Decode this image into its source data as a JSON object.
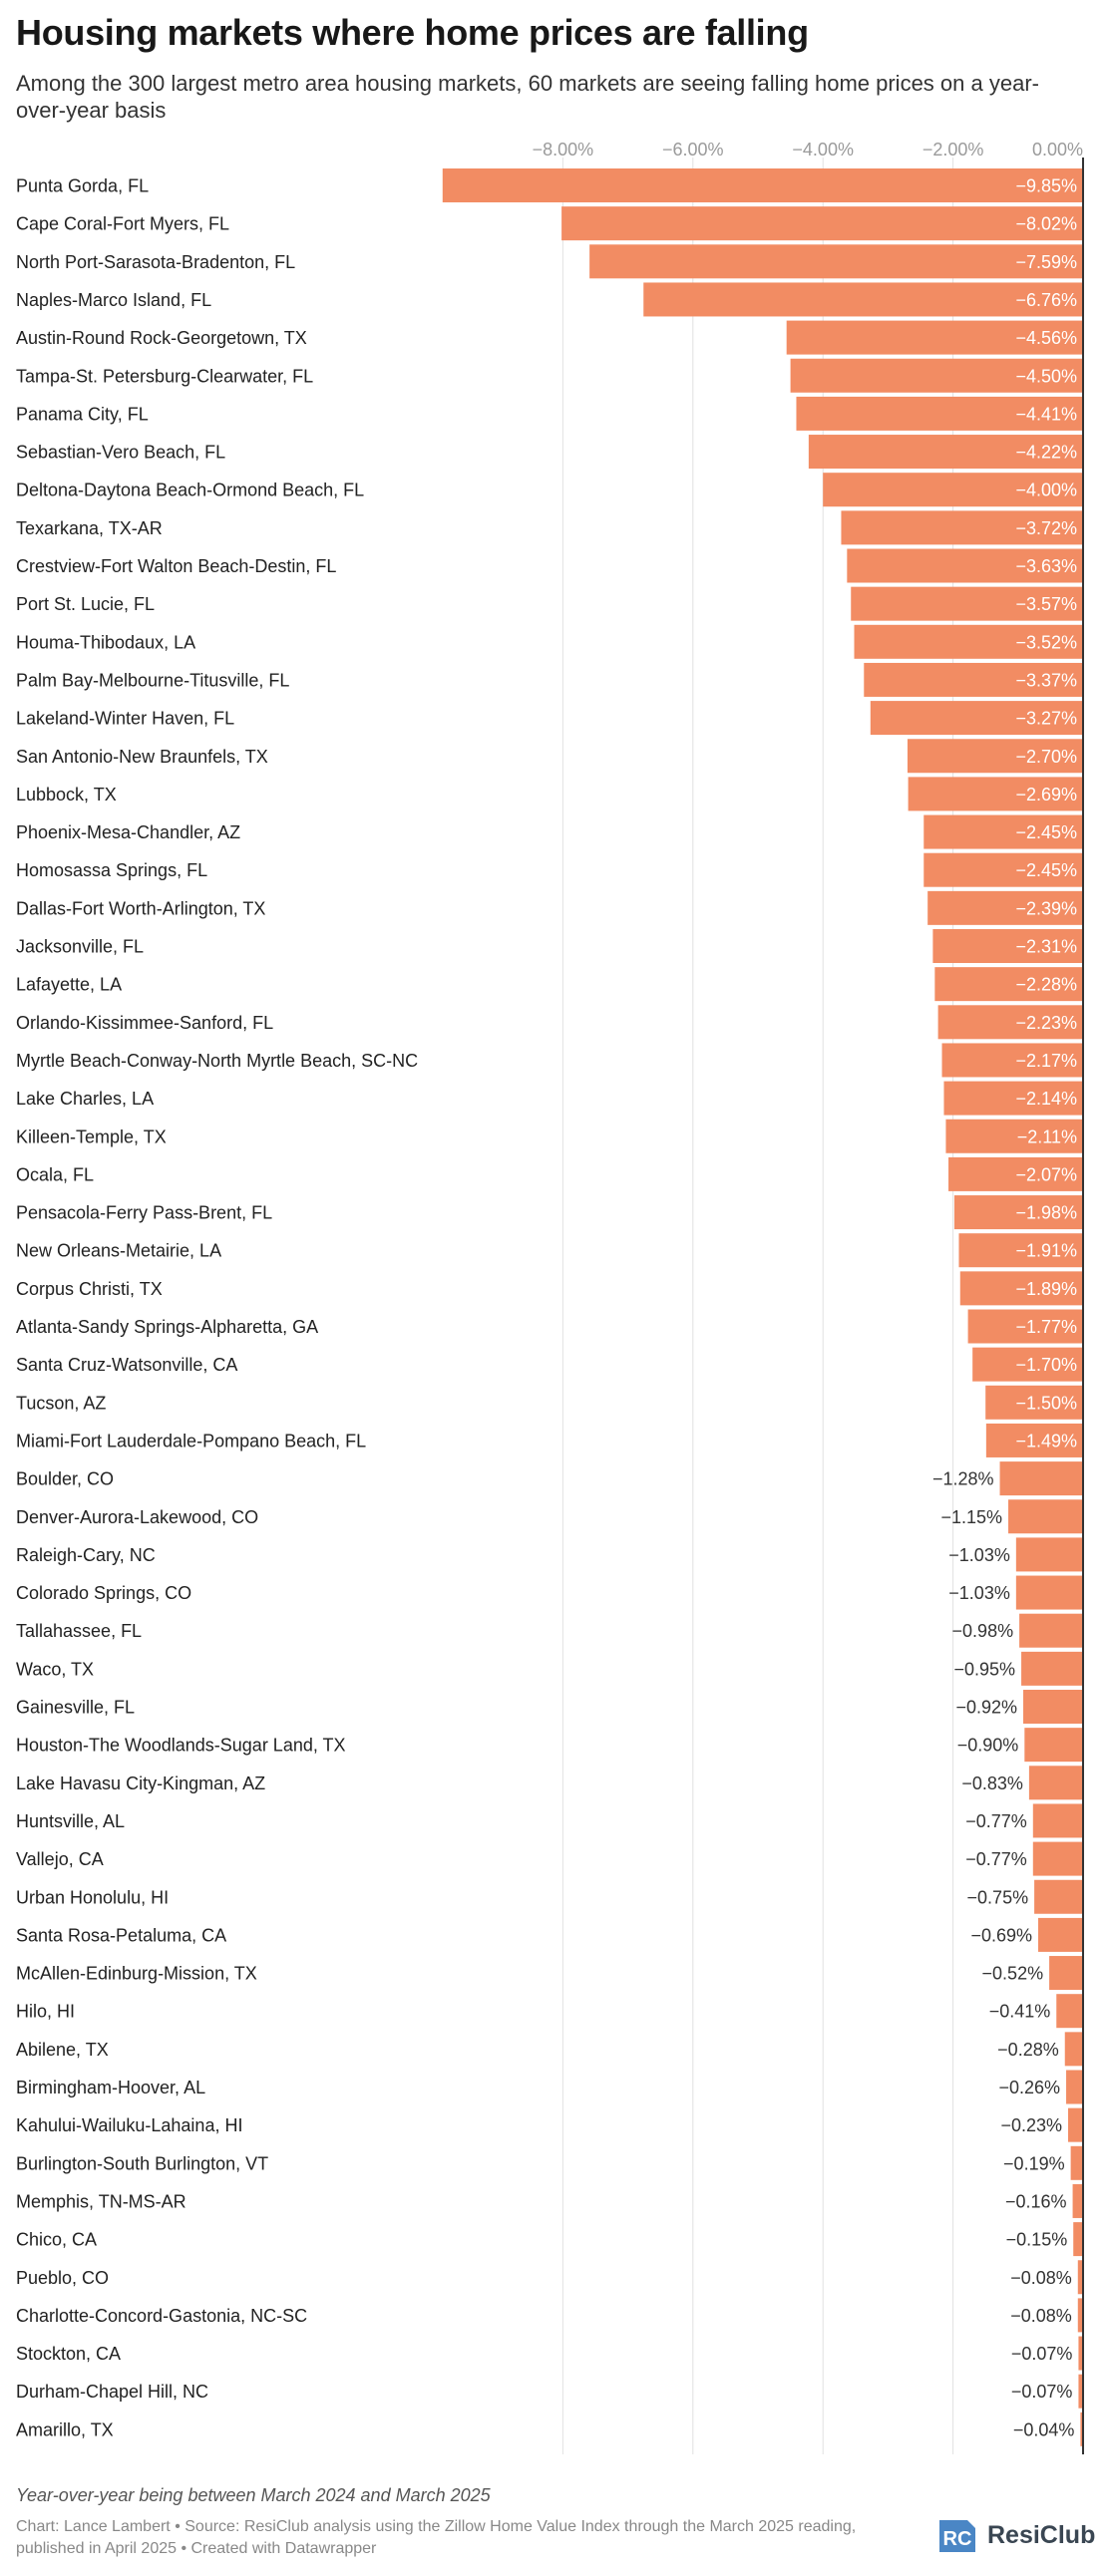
{
  "header": {
    "title": "Housing markets where home prices are falling",
    "subtitle": "Among the 300 largest metro area housing markets, 60 markets are seeing falling home prices on a year-over-year basis"
  },
  "chart_data": {
    "type": "bar",
    "orientation": "horizontal",
    "title": "Housing markets where home prices are falling",
    "xlabel": "",
    "ylabel": "",
    "xlim": [
      -10.2,
      0
    ],
    "x_ticks": [
      -8,
      -6,
      -4,
      -2,
      0
    ],
    "x_tick_labels": [
      "−8.00%",
      "−6.00%",
      "−4.00%",
      "−2.00%",
      "0.00%"
    ],
    "grid": true,
    "bar_color": "#f28c63",
    "zero_line_color": "#333333",
    "categories": [
      "Punta Gorda, FL",
      "Cape Coral-Fort Myers, FL",
      "North Port-Sarasota-Bradenton, FL",
      "Naples-Marco Island, FL",
      "Austin-Round Rock-Georgetown, TX",
      "Tampa-St. Petersburg-Clearwater, FL",
      "Panama City, FL",
      "Sebastian-Vero Beach, FL",
      "Deltona-Daytona Beach-Ormond Beach, FL",
      "Texarkana, TX-AR",
      "Crestview-Fort Walton Beach-Destin, FL",
      "Port St. Lucie, FL",
      "Houma-Thibodaux, LA",
      "Palm Bay-Melbourne-Titusville, FL",
      "Lakeland-Winter Haven, FL",
      "San Antonio-New Braunfels, TX",
      "Lubbock, TX",
      "Phoenix-Mesa-Chandler, AZ",
      "Homosassa Springs, FL",
      "Dallas-Fort Worth-Arlington, TX",
      "Jacksonville, FL",
      "Lafayette, LA",
      "Orlando-Kissimmee-Sanford, FL",
      "Myrtle Beach-Conway-North Myrtle Beach, SC-NC",
      "Lake Charles, LA",
      "Killeen-Temple, TX",
      "Ocala, FL",
      "Pensacola-Ferry Pass-Brent, FL",
      "New Orleans-Metairie, LA",
      "Corpus Christi, TX",
      "Atlanta-Sandy Springs-Alpharetta, GA",
      "Santa Cruz-Watsonville, CA",
      "Tucson, AZ",
      "Miami-Fort Lauderdale-Pompano Beach, FL",
      "Boulder, CO",
      "Denver-Aurora-Lakewood, CO",
      "Raleigh-Cary, NC",
      "Colorado Springs, CO",
      "Tallahassee, FL",
      "Waco, TX",
      "Gainesville, FL",
      "Houston-The Woodlands-Sugar Land, TX",
      "Lake Havasu City-Kingman, AZ",
      "Huntsville, AL",
      "Vallejo, CA",
      "Urban Honolulu, HI",
      "Santa Rosa-Petaluma, CA",
      "McAllen-Edinburg-Mission, TX",
      "Hilo, HI",
      "Abilene, TX",
      "Birmingham-Hoover, AL",
      "Kahului-Wailuku-Lahaina, HI",
      "Burlington-South Burlington, VT",
      "Memphis, TN-MS-AR",
      "Chico, CA",
      "Pueblo, CO",
      "Charlotte-Concord-Gastonia, NC-SC",
      "Stockton, CA",
      "Durham-Chapel Hill, NC",
      "Amarillo, TX"
    ],
    "values": [
      -9.85,
      -8.02,
      -7.59,
      -6.76,
      -4.56,
      -4.5,
      -4.41,
      -4.22,
      -4.0,
      -3.72,
      -3.63,
      -3.57,
      -3.52,
      -3.37,
      -3.27,
      -2.7,
      -2.69,
      -2.45,
      -2.45,
      -2.39,
      -2.31,
      -2.28,
      -2.23,
      -2.17,
      -2.14,
      -2.11,
      -2.07,
      -1.98,
      -1.91,
      -1.89,
      -1.77,
      -1.7,
      -1.5,
      -1.49,
      -1.28,
      -1.15,
      -1.03,
      -1.03,
      -0.98,
      -0.95,
      -0.92,
      -0.9,
      -0.83,
      -0.77,
      -0.77,
      -0.75,
      -0.69,
      -0.52,
      -0.41,
      -0.28,
      -0.26,
      -0.23,
      -0.19,
      -0.16,
      -0.15,
      -0.08,
      -0.08,
      -0.07,
      -0.07,
      -0.04
    ],
    "value_labels": [
      "−9.85%",
      "−8.02%",
      "−7.59%",
      "−6.76%",
      "−4.56%",
      "−4.50%",
      "−4.41%",
      "−4.22%",
      "−4.00%",
      "−3.72%",
      "−3.63%",
      "−3.57%",
      "−3.52%",
      "−3.37%",
      "−3.27%",
      "−2.70%",
      "−2.69%",
      "−2.45%",
      "−2.45%",
      "−2.39%",
      "−2.31%",
      "−2.28%",
      "−2.23%",
      "−2.17%",
      "−2.14%",
      "−2.11%",
      "−2.07%",
      "−1.98%",
      "−1.91%",
      "−1.89%",
      "−1.77%",
      "−1.70%",
      "−1.50%",
      "−1.49%",
      "−1.28%",
      "−1.15%",
      "−1.03%",
      "−1.03%",
      "−0.98%",
      "−0.95%",
      "−0.92%",
      "−0.90%",
      "−0.83%",
      "−0.77%",
      "−0.77%",
      "−0.75%",
      "−0.69%",
      "−0.52%",
      "−0.41%",
      "−0.28%",
      "−0.26%",
      "−0.23%",
      "−0.19%",
      "−0.16%",
      "−0.15%",
      "−0.08%",
      "−0.08%",
      "−0.07%",
      "−0.07%",
      "−0.04%"
    ]
  },
  "footer": {
    "note": "Year-over-year being between March 2024 and March 2025",
    "credit": "Chart: Lance Lambert • Source: ResiClub analysis using the Zillow Home Value Index through the March 2025 reading, published in April 2025 • Created with Datawrapper",
    "logo_text": "ResiClub",
    "logo_mark": "RC"
  }
}
